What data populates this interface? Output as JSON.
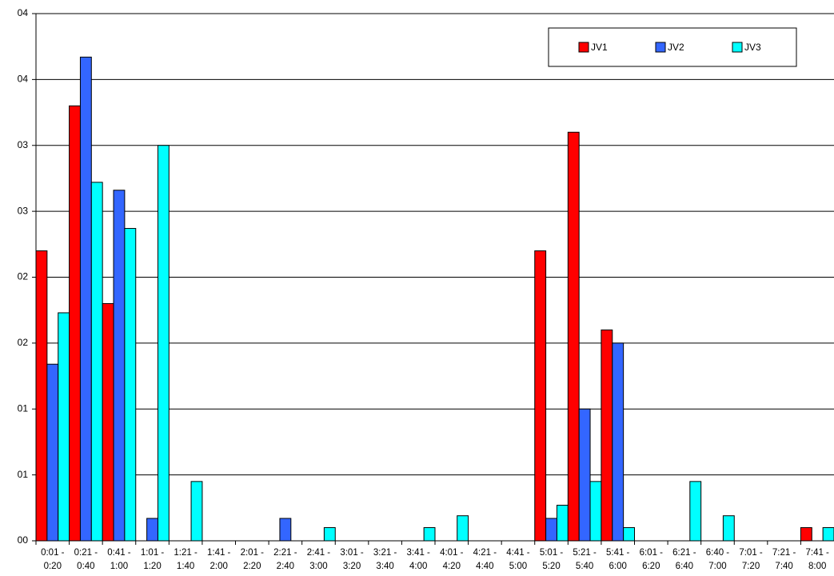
{
  "chart_data": {
    "type": "bar",
    "categories": [
      "0:01 - 0:20",
      "0:21 - 0:40",
      "0:41 - 1:00",
      "1:01 - 1:20",
      "1:21 - 1:40",
      "1:41 - 2:00",
      "2:01 - 2:20",
      "2:21 - 2:40",
      "2:41 - 3:00",
      "3:01 - 3:20",
      "3:21 - 3:40",
      "3:41 - 4:00",
      "4:01 - 4:20",
      "4:21 - 4:40",
      "4:41 - 5:00",
      "5:01 - 5:20",
      "5:21 - 5:40",
      "5:41 - 6:00",
      "6:01 - 6:20",
      "6:21 - 6:40",
      "6:40 - 7:00",
      "7:01 - 7:20",
      "7:21 - 7:40",
      "7:41 - 8:00"
    ],
    "series": [
      {
        "name": "JV1",
        "color": "#ff0000",
        "values": [
          2.2,
          3.3,
          1.8,
          0,
          0,
          0,
          0,
          0,
          0,
          0,
          0,
          0,
          0,
          0,
          0,
          2.2,
          3.1,
          1.6,
          0,
          0,
          0,
          0,
          0,
          0.1
        ]
      },
      {
        "name": "JV2",
        "color": "#3366ff",
        "values": [
          1.34,
          3.67,
          2.66,
          0.17,
          0,
          0,
          0,
          0.17,
          0,
          0,
          0,
          0,
          0,
          0,
          0,
          0.17,
          1.0,
          1.5,
          0,
          0,
          0,
          0,
          0,
          0
        ]
      },
      {
        "name": "JV3",
        "color": "#00ffff",
        "values": [
          1.73,
          2.72,
          2.37,
          3.0,
          0.45,
          0,
          0,
          0,
          0.1,
          0,
          0,
          0.1,
          0.19,
          0,
          0,
          0.27,
          0.45,
          0.1,
          0,
          0.45,
          0.19,
          0,
          0,
          0.1
        ]
      }
    ],
    "ylim": [
      0,
      4
    ],
    "yticks": [
      {
        "value": 0,
        "label": "00"
      },
      {
        "value": 0.5,
        "label": "01"
      },
      {
        "value": 1,
        "label": "01"
      },
      {
        "value": 1.5,
        "label": "02"
      },
      {
        "value": 2,
        "label": "02"
      },
      {
        "value": 2.5,
        "label": "03"
      },
      {
        "value": 3,
        "label": "03"
      },
      {
        "value": 3.5,
        "label": "04"
      },
      {
        "value": 4,
        "label": "04"
      }
    ],
    "grid": true,
    "legend": "top-right"
  }
}
